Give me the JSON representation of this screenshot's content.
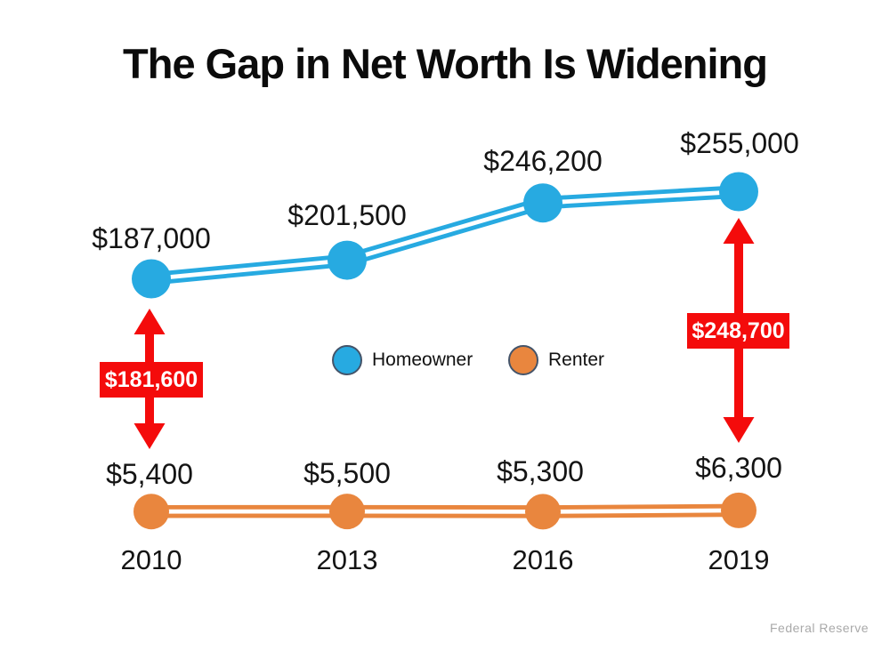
{
  "title": "The Gap in Net Worth Is Widening",
  "source": "Federal Reserve",
  "colors": {
    "homeowner_blue": "#27AAE1",
    "renter_orange": "#E9863E",
    "gap_red": "#F40B0B",
    "legend_ring": "#44546A",
    "source_gray": "#A9A9A9",
    "text_black": "#141414",
    "background": "#FFFFFF"
  },
  "chart_data": {
    "type": "line",
    "title": "The Gap in Net Worth Is Widening",
    "source": "Federal Reserve",
    "categories": [
      "2010",
      "2013",
      "2016",
      "2019"
    ],
    "series": [
      {
        "name": "Homeowner",
        "color": "#27AAE1",
        "values": [
          187000,
          201500,
          246200,
          255000
        ],
        "labels": [
          "$187,000",
          "$201,500",
          "$246,200",
          "$255,000"
        ]
      },
      {
        "name": "Renter",
        "color": "#E9863E",
        "values": [
          5400,
          5500,
          5300,
          6300
        ],
        "labels": [
          "$5,400",
          "$5,500",
          "$5,300",
          "$6,300"
        ]
      }
    ],
    "gap_annotations": [
      {
        "label": "$181,600",
        "at_category": "2010",
        "gap_value": 181600,
        "color": "#F40B0B"
      },
      {
        "label": "$248,700",
        "at_category": "2019",
        "gap_value": 248700,
        "color": "#F40B0B"
      }
    ],
    "xlabel": "",
    "ylabel": "",
    "axes_shown": false,
    "grid": false,
    "legend_position": "center",
    "marker_style": "filled-circle",
    "line_style": "double-stroke"
  },
  "legend": {
    "homeowner_label": "Homeowner",
    "renter_label": "Renter"
  }
}
